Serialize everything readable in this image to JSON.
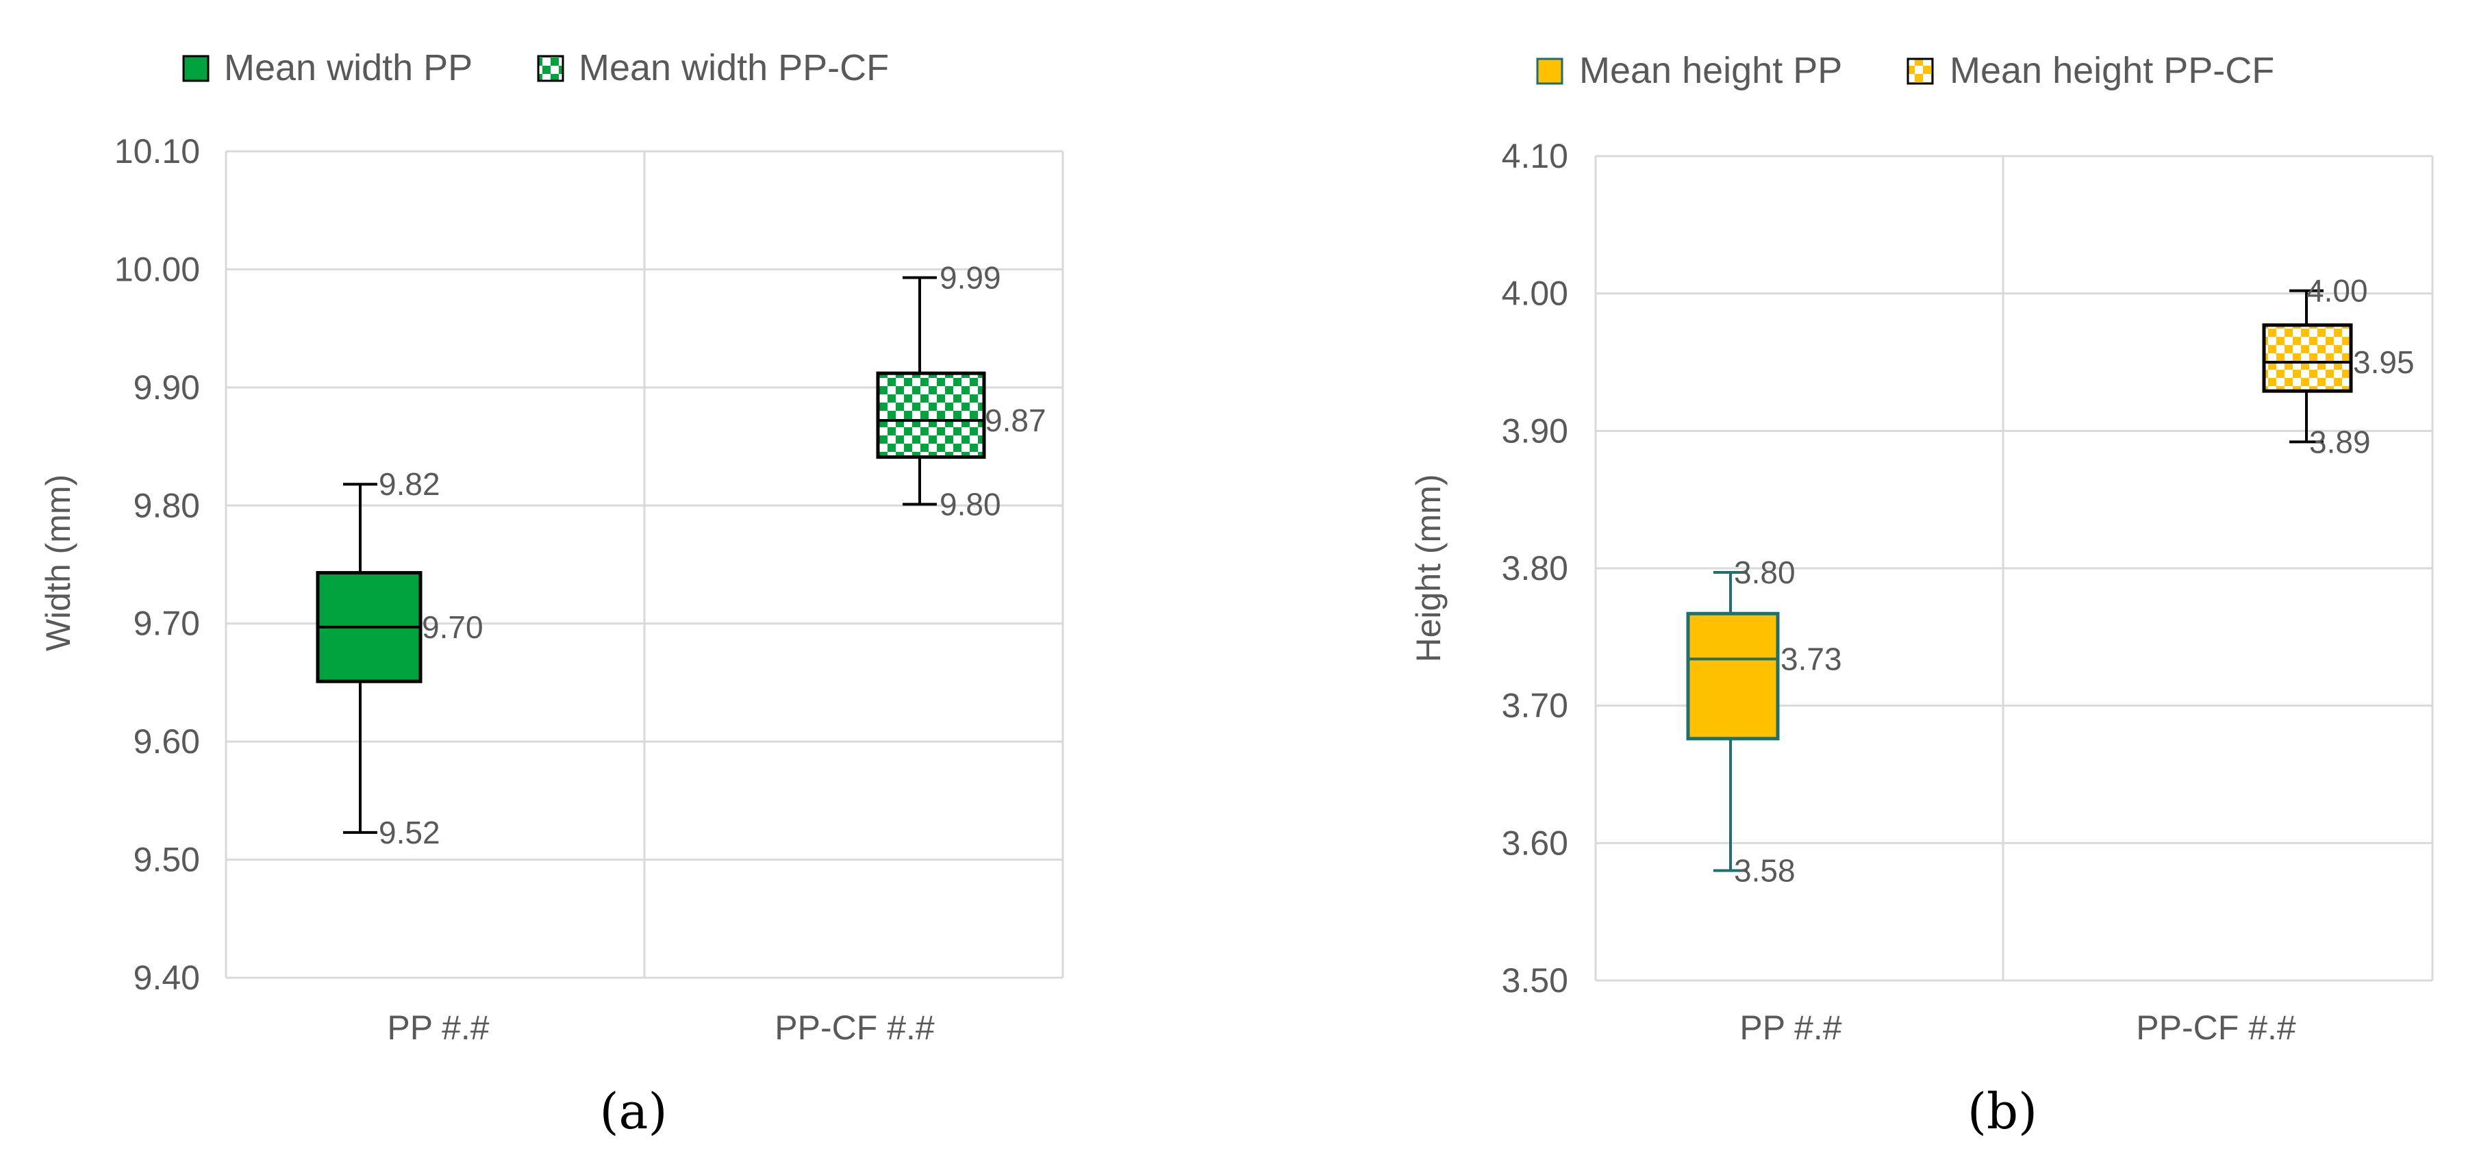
{
  "colors": {
    "pp_width_fill": "#00a33e",
    "pp_height_fill": "#ffc000",
    "pp_height_stroke": "#1f6f6f",
    "checker_light": "#ffffff",
    "outline": "#000000",
    "grid": "#d9d9d9",
    "text": "#595959"
  },
  "chart_data": [
    {
      "type": "box",
      "panel_label": "(a)",
      "ylabel": "Width (mm)",
      "ylim": [
        9.4,
        10.1
      ],
      "yticks": [
        "9.40",
        "9.50",
        "9.60",
        "9.70",
        "9.80",
        "9.90",
        "10.00",
        "10.10"
      ],
      "ytick_values": [
        9.4,
        9.5,
        9.6,
        9.7,
        9.8,
        9.9,
        10.0,
        10.1
      ],
      "categories": [
        "PP #.#",
        "PP-CF #.#"
      ],
      "legend": [
        "Mean width PP",
        "Mean width PP-CF"
      ],
      "legend_placement": "top-left",
      "series": [
        {
          "name": "Mean width PP",
          "pattern": "solid",
          "min": 9.523,
          "q1": 9.651,
          "median": 9.697,
          "q3": 9.743,
          "max": 9.818,
          "labels": {
            "max": "9.82",
            "median": "9.70",
            "min": "9.52"
          }
        },
        {
          "name": "Mean width PP-CF",
          "pattern": "checker",
          "min": 9.801,
          "q1": 9.841,
          "median": 9.872,
          "q3": 9.912,
          "max": 9.993,
          "labels": {
            "max": "9.99",
            "median": "9.87",
            "min": "9.80"
          }
        }
      ]
    },
    {
      "type": "box",
      "panel_label": "(b)",
      "ylabel": "Height (mm)",
      "ylim": [
        3.5,
        4.1
      ],
      "yticks": [
        "3.50",
        "3.60",
        "3.70",
        "3.80",
        "3.90",
        "4.00",
        "4.10"
      ],
      "ytick_values": [
        3.5,
        3.6,
        3.7,
        3.8,
        3.9,
        4.0,
        4.1
      ],
      "categories": [
        "PP #.#",
        "PP-CF #.#"
      ],
      "legend": [
        "Mean height PP",
        "Mean height PP-CF"
      ],
      "legend_placement": "top-left",
      "series": [
        {
          "name": "Mean height PP",
          "pattern": "solid",
          "min": 3.58,
          "q1": 3.676,
          "median": 3.734,
          "q3": 3.767,
          "max": 3.797,
          "labels": {
            "max": "3.80",
            "median": "3.73",
            "min": "3.58"
          }
        },
        {
          "name": "Mean height PP-CF",
          "pattern": "checker",
          "min": 3.892,
          "q1": 3.929,
          "median": 3.95,
          "q3": 3.977,
          "max": 4.002,
          "labels": {
            "max": "4.00",
            "median": "3.95",
            "min": "3.89"
          }
        }
      ]
    }
  ]
}
